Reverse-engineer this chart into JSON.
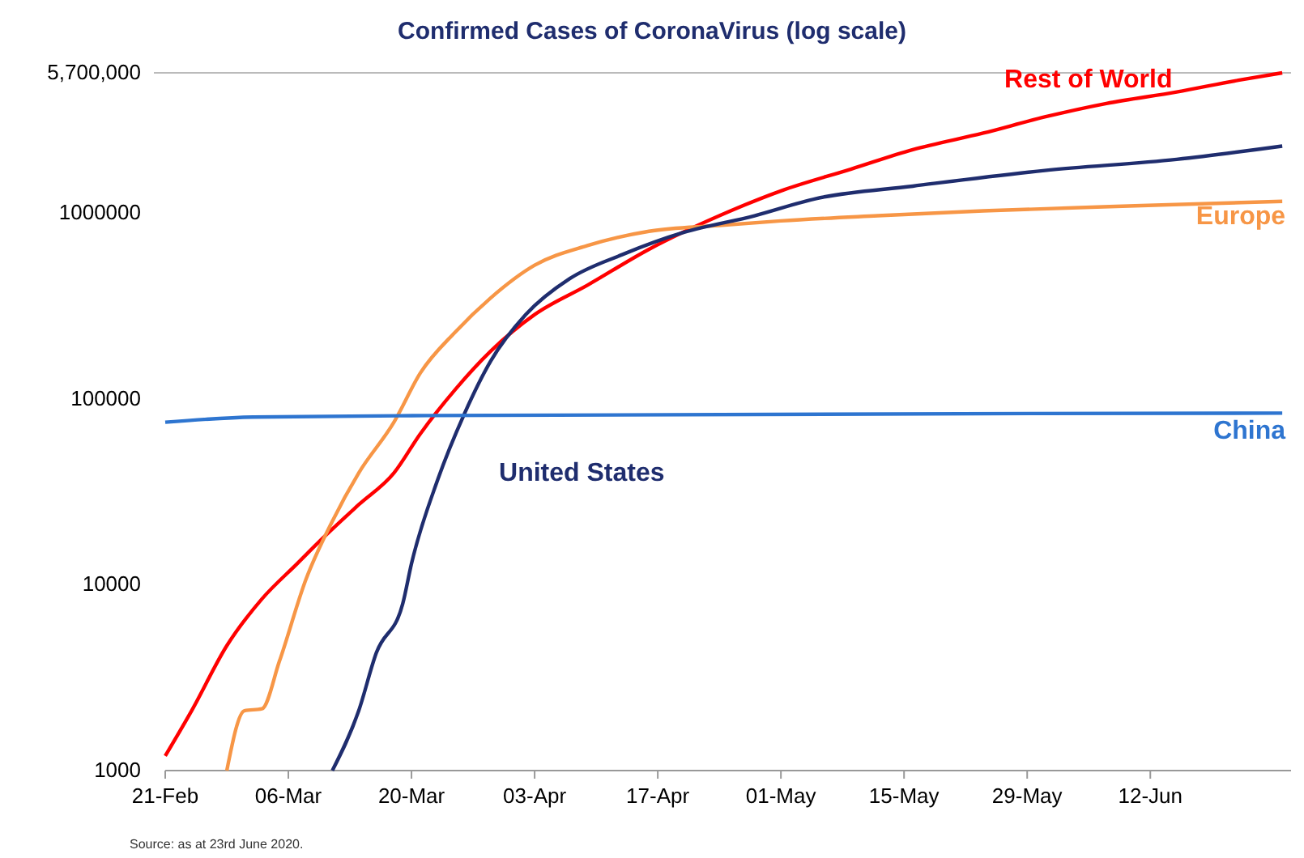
{
  "chart_data": {
    "type": "line",
    "title": "Confirmed Cases of CoronaVirus (log scale)",
    "log": "y",
    "grid": false,
    "legend": false,
    "marker": "none",
    "line_style": "solid",
    "xlim": [
      "2020-02-21",
      "2020-06-28"
    ],
    "xticks": [
      {
        "value": "2020-02-21",
        "label": "21-Feb"
      },
      {
        "value": "2020-03-06",
        "label": "06-Mar"
      },
      {
        "value": "2020-03-20",
        "label": "20-Mar"
      },
      {
        "value": "2020-04-03",
        "label": "03-Apr"
      },
      {
        "value": "2020-04-17",
        "label": "17-Apr"
      },
      {
        "value": "2020-05-01",
        "label": "01-May"
      },
      {
        "value": "2020-05-15",
        "label": "15-May"
      },
      {
        "value": "2020-05-29",
        "label": "29-May"
      },
      {
        "value": "2020-06-12",
        "label": "12-Jun"
      }
    ],
    "ylim": [
      1000,
      5700000
    ],
    "yticks": [
      1000,
      10000,
      100000,
      1000000,
      {
        "value": 5700000,
        "label": "5,700,000"
      }
    ],
    "series": [
      {
        "name": "Rest of World",
        "color": "#ff0000",
        "x": [
          "2020-02-21",
          "2020-02-24",
          "2020-02-28",
          "2020-03-03",
          "2020-03-07",
          "2020-03-10",
          "2020-03-14",
          "2020-03-18",
          "2020-03-21",
          "2020-03-25",
          "2020-03-29",
          "2020-04-03",
          "2020-04-09",
          "2020-04-16",
          "2020-04-24",
          "2020-05-01",
          "2020-05-09",
          "2020-05-16",
          "2020-05-24",
          "2020-05-31",
          "2020-06-07",
          "2020-06-15",
          "2020-06-22",
          "2020-06-27"
        ],
        "values": [
          1200,
          2100,
          4700,
          8400,
          13000,
          18000,
          27000,
          40000,
          65000,
          113000,
          181000,
          285000,
          410000,
          640000,
          970000,
          1320000,
          1730000,
          2200000,
          2700000,
          3300000,
          3900000,
          4500000,
          5200000,
          5700000
        ]
      },
      {
        "name": "Europe",
        "color": "#f79646",
        "x": [
          "2020-02-28",
          "2020-03-01",
          "2020-03-03",
          "2020-03-05",
          "2020-03-08",
          "2020-03-11",
          "2020-03-14",
          "2020-03-18",
          "2020-03-21",
          "2020-03-25",
          "2020-03-29",
          "2020-04-03",
          "2020-04-09",
          "2020-04-16",
          "2020-04-24",
          "2020-05-01",
          "2020-05-12",
          "2020-05-24",
          "2020-06-11",
          "2020-06-27"
        ],
        "values": [
          1000,
          2100,
          2150,
          3900,
          10700,
          22000,
          40000,
          75000,
          138000,
          230000,
          350000,
          525000,
          670000,
          800000,
          860000,
          910000,
          970000,
          1030000,
          1100000,
          1160000
        ]
      },
      {
        "name": "United States",
        "color": "#1f2d6e",
        "x": [
          "2020-03-11",
          "2020-03-14",
          "2020-03-16",
          "2020-03-19",
          "2020-03-20",
          "2020-03-23",
          "2020-03-26",
          "2020-03-29",
          "2020-04-02",
          "2020-04-07",
          "2020-04-13",
          "2020-04-20",
          "2020-04-28",
          "2020-05-05",
          "2020-05-16",
          "2020-05-31",
          "2020-06-15",
          "2020-06-27"
        ],
        "values": [
          1000,
          2100,
          4300,
          7900,
          13000,
          37000,
          83000,
          160000,
          285000,
          445000,
          600000,
          790000,
          970000,
          1200000,
          1400000,
          1700000,
          1950000,
          2300000
        ]
      },
      {
        "name": "China",
        "color": "#2e75d0",
        "x": [
          "2020-02-21",
          "2020-03-02",
          "2020-03-22",
          "2020-06-27"
        ],
        "values": [
          75000,
          80000,
          81500,
          84000
        ]
      }
    ],
    "annotations": [
      "Source: as at 23rd June 2020."
    ]
  }
}
